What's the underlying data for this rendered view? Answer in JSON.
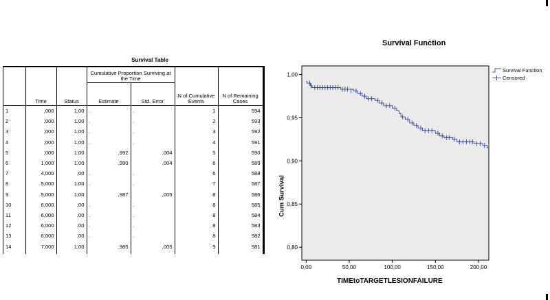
{
  "table": {
    "caption": "Survival Table",
    "headers": {
      "cum_group": "Cumulative Proportion Surviving at the Time",
      "time": "Time",
      "status": "Status",
      "estimate": "Estimate",
      "std_error": "Std. Error",
      "n_events": "N of Cumulative Events",
      "n_remaining": "N of Remaining Cases"
    },
    "rows": [
      {
        "idx": "1",
        "time": ",000",
        "status": "1,00",
        "estimate": ".",
        "std_error": ".",
        "events": "1",
        "remaining": "594"
      },
      {
        "idx": "2",
        "time": ",000",
        "status": "1,00",
        "estimate": ".",
        "std_error": ".",
        "events": "2",
        "remaining": "593"
      },
      {
        "idx": "3",
        "time": ",000",
        "status": "1,00",
        "estimate": ".",
        "std_error": ".",
        "events": "3",
        "remaining": "592"
      },
      {
        "idx": "4",
        "time": ",000",
        "status": "1,00",
        "estimate": ".",
        "std_error": ".",
        "events": "4",
        "remaining": "591"
      },
      {
        "idx": "5",
        "time": ",000",
        "status": "1,00",
        "estimate": ",992",
        "std_error": ",004",
        "events": "5",
        "remaining": "590"
      },
      {
        "idx": "6",
        "time": "1,000",
        "status": "1,00",
        "estimate": ",990",
        "std_error": ",004",
        "events": "6",
        "remaining": "589"
      },
      {
        "idx": "7",
        "time": "4,000",
        "status": ",00",
        "estimate": ".",
        "std_error": ".",
        "events": "6",
        "remaining": "588"
      },
      {
        "idx": "8",
        "time": "5,000",
        "status": "1,00",
        "estimate": ".",
        "std_error": ".",
        "events": "7",
        "remaining": "587"
      },
      {
        "idx": "9",
        "time": "5,000",
        "status": "1,00",
        "estimate": ",987",
        "std_error": ",005",
        "events": "8",
        "remaining": "586"
      },
      {
        "idx": "10",
        "time": "6,000",
        "status": ",00",
        "estimate": ".",
        "std_error": ".",
        "events": "8",
        "remaining": "585"
      },
      {
        "idx": "11",
        "time": "6,000",
        "status": ",00",
        "estimate": ".",
        "std_error": ".",
        "events": "8",
        "remaining": "584"
      },
      {
        "idx": "12",
        "time": "6,000",
        "status": ",00",
        "estimate": ".",
        "std_error": ".",
        "events": "8",
        "remaining": "583"
      },
      {
        "idx": "13",
        "time": "6,000",
        "status": ",00",
        "estimate": ".",
        "std_error": ".",
        "events": "8",
        "remaining": "582"
      },
      {
        "idx": "14",
        "time": "7,000",
        "status": "1,00",
        "estimate": ",985",
        "std_error": ",005",
        "events": "9",
        "remaining": "581"
      },
      {
        "idx": "15",
        "time": "",
        "status": "",
        "estimate": "",
        "std_error": "",
        "events": "",
        "remaining": ""
      }
    ]
  },
  "chart_data": {
    "type": "line",
    "title": "Survival Function",
    "xlabel": "TIMEtoTARGETLESIONFAILURE",
    "ylabel": "Cum Survival",
    "xlim": [
      -5,
      212
    ],
    "ylim": [
      0.785,
      1.01
    ],
    "xticks": [
      0,
      50,
      100,
      150,
      200
    ],
    "xtick_labels": [
      "0,00",
      "50,00",
      "100,00",
      "150,00",
      "200,00"
    ],
    "yticks": [
      0.8,
      0.85,
      0.9,
      0.95,
      1.0
    ],
    "ytick_labels": [
      "0,80",
      "0,85",
      "0,90",
      "0,95",
      "1,00"
    ],
    "grid": false,
    "legend_position": "outside top-right",
    "plot_background": "#ebebeb",
    "series_color": "#3a50a0",
    "series": [
      {
        "name": "Survival Function",
        "x": [
          0,
          1,
          5,
          7,
          40,
          55,
          60,
          65,
          70,
          80,
          85,
          90,
          100,
          105,
          108,
          110,
          115,
          120,
          125,
          130,
          135,
          150,
          155,
          160,
          170,
          175,
          195,
          205,
          210
        ],
        "y": [
          0.992,
          0.99,
          0.987,
          0.985,
          0.983,
          0.981,
          0.978,
          0.975,
          0.972,
          0.97,
          0.967,
          0.964,
          0.961,
          0.958,
          0.955,
          0.951,
          0.948,
          0.944,
          0.941,
          0.938,
          0.935,
          0.932,
          0.929,
          0.927,
          0.925,
          0.922,
          0.92,
          0.918,
          0.915
        ]
      },
      {
        "name": "Censored",
        "x": [
          4,
          6,
          10,
          13,
          16,
          19,
          22,
          25,
          28,
          31,
          34,
          37,
          42,
          45,
          48,
          52,
          58,
          63,
          68,
          72,
          76,
          83,
          88,
          93,
          97,
          103,
          112,
          118,
          123,
          128,
          133,
          138,
          142,
          146,
          153,
          158,
          163,
          166,
          172,
          178,
          182,
          186,
          190,
          193,
          198,
          202,
          207
        ],
        "y": [
          0.99,
          0.987,
          0.985,
          0.985,
          0.985,
          0.985,
          0.985,
          0.985,
          0.985,
          0.985,
          0.985,
          0.985,
          0.983,
          0.983,
          0.983,
          0.981,
          0.981,
          0.978,
          0.975,
          0.972,
          0.972,
          0.97,
          0.967,
          0.964,
          0.964,
          0.961,
          0.951,
          0.948,
          0.944,
          0.941,
          0.938,
          0.935,
          0.935,
          0.935,
          0.932,
          0.929,
          0.927,
          0.927,
          0.925,
          0.922,
          0.922,
          0.922,
          0.922,
          0.922,
          0.92,
          0.92,
          0.918
        ]
      }
    ]
  },
  "legend": {
    "survival_label": "Survival Function",
    "censored_label": "Censored"
  }
}
